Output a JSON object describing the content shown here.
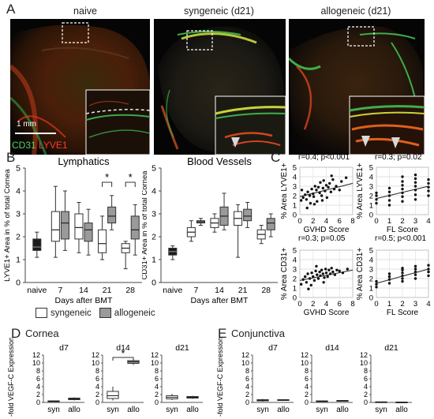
{
  "panel_a": {
    "letter": "A",
    "conditions": [
      "naive",
      "syngeneic (d21)",
      "allogeneic (d21)"
    ],
    "scale_bar": "1 mm",
    "stain_green": "CD31",
    "stain_red": "LYVE1",
    "colors": {
      "green": "#3fae49",
      "red": "#e2231a"
    }
  },
  "panel_b": {
    "letter": "B",
    "legend": {
      "syngeneic": "syngeneic",
      "allogeneic": "allogeneic"
    },
    "xlabel": "Days after BMT",
    "star": "*"
  },
  "panel_c": {
    "letter": "C"
  },
  "panel_d": {
    "letter": "D",
    "title": "Cornea"
  },
  "panel_e": {
    "letter": "E",
    "title": "Conjunctiva"
  },
  "chart_data": [
    {
      "type": "box",
      "title": "Lymphatics",
      "ylabel": "LYVE1+ Area in % of total Cornea",
      "xlabel": "Days after BMT",
      "categories": [
        "naive",
        "7",
        "14",
        "21",
        "28"
      ],
      "ylim": [
        0,
        5
      ],
      "yticks": [
        0,
        1,
        2,
        3,
        4,
        5
      ],
      "series": [
        {
          "name": "naive",
          "boxes": [
            {
              "cat": "naive",
              "min": 1.1,
              "q1": 1.4,
              "median": 1.55,
              "q3": 1.9,
              "max": 2.2
            }
          ]
        },
        {
          "name": "syngeneic",
          "boxes": [
            {
              "cat": "7",
              "min": 1.1,
              "q1": 1.8,
              "median": 2.3,
              "q3": 3.1,
              "max": 4.2
            },
            {
              "cat": "14",
              "min": 1.3,
              "q1": 1.9,
              "median": 2.4,
              "q3": 3.0,
              "max": 3.5
            },
            {
              "cat": "21",
              "min": 1.0,
              "q1": 1.3,
              "median": 1.7,
              "q3": 2.3,
              "max": 2.9
            },
            {
              "cat": "28",
              "min": 0.6,
              "q1": 1.3,
              "median": 1.5,
              "q3": 1.7,
              "max": 1.8
            }
          ]
        },
        {
          "name": "allogeneic",
          "boxes": [
            {
              "cat": "7",
              "min": 1.4,
              "q1": 1.9,
              "median": 2.6,
              "q3": 3.1,
              "max": 4.0
            },
            {
              "cat": "14",
              "min": 1.2,
              "q1": 1.8,
              "median": 2.3,
              "q3": 2.6,
              "max": 3.2
            },
            {
              "cat": "21",
              "min": 2.3,
              "q1": 2.6,
              "median": 2.9,
              "q3": 3.3,
              "max": 3.8
            },
            {
              "cat": "28",
              "min": 1.2,
              "q1": 1.9,
              "median": 2.3,
              "q3": 2.9,
              "max": 3.4
            }
          ]
        }
      ],
      "significance": [
        {
          "cat": "21",
          "label": "*"
        },
        {
          "cat": "28",
          "label": "*"
        }
      ]
    },
    {
      "type": "box",
      "title": "Blood Vessels",
      "ylabel": "CD31+ Area in % of total Cornea",
      "xlabel": "Days after BMT",
      "categories": [
        "naive",
        "7",
        "14",
        "21",
        "28"
      ],
      "ylim": [
        0,
        5
      ],
      "yticks": [
        0,
        1,
        2,
        3,
        4,
        5
      ],
      "series": [
        {
          "name": "naive",
          "boxes": [
            {
              "cat": "naive",
              "min": 1.0,
              "q1": 1.2,
              "median": 1.35,
              "q3": 1.5,
              "max": 1.6
            }
          ]
        },
        {
          "name": "syngeneic",
          "boxes": [
            {
              "cat": "7",
              "min": 1.8,
              "q1": 2.0,
              "median": 2.2,
              "q3": 2.4,
              "max": 2.7
            },
            {
              "cat": "14",
              "min": 2.2,
              "q1": 2.4,
              "median": 2.6,
              "q3": 2.8,
              "max": 3.0
            },
            {
              "cat": "21",
              "min": 1.1,
              "q1": 2.5,
              "median": 2.8,
              "q3": 3.1,
              "max": 3.4
            },
            {
              "cat": "28",
              "min": 1.7,
              "q1": 1.9,
              "median": 2.1,
              "q3": 2.3,
              "max": 2.5
            }
          ]
        },
        {
          "name": "allogeneic",
          "boxes": [
            {
              "cat": "7",
              "min": 2.5,
              "q1": 2.6,
              "median": 2.65,
              "q3": 2.7,
              "max": 2.8
            },
            {
              "cat": "14",
              "min": 2.3,
              "q1": 2.5,
              "median": 2.9,
              "q3": 3.3,
              "max": 3.9
            },
            {
              "cat": "21",
              "min": 2.4,
              "q1": 2.7,
              "median": 2.9,
              "q3": 3.2,
              "max": 3.5
            },
            {
              "cat": "28",
              "min": 2.0,
              "q1": 2.3,
              "median": 2.6,
              "q3": 2.8,
              "max": 3.0
            }
          ]
        }
      ]
    },
    {
      "type": "scatter",
      "annotation": "r=0.4; p<0.001",
      "xlabel": "GVHD Score",
      "ylabel": "% Area LYVE1+",
      "xlim": [
        0,
        8
      ],
      "ylim": [
        0,
        5
      ],
      "xticks": [
        0,
        2,
        4,
        6,
        8
      ],
      "yticks": [
        0,
        1,
        2,
        3,
        4,
        5
      ],
      "trend": [
        [
          0,
          1.9
        ],
        [
          8,
          3.3
        ]
      ],
      "points": [
        [
          0.2,
          1.5
        ],
        [
          0.5,
          1.8
        ],
        [
          0.8,
          2.1
        ],
        [
          1.0,
          1.6
        ],
        [
          1.2,
          2.4
        ],
        [
          1.5,
          2.0
        ],
        [
          1.6,
          1.2
        ],
        [
          1.8,
          2.7
        ],
        [
          2.0,
          2.2
        ],
        [
          2.1,
          1.9
        ],
        [
          2.3,
          3.0
        ],
        [
          2.5,
          2.6
        ],
        [
          2.6,
          1.4
        ],
        [
          2.8,
          2.9
        ],
        [
          3.0,
          2.3
        ],
        [
          3.1,
          3.4
        ],
        [
          3.3,
          2.0
        ],
        [
          3.5,
          2.8
        ],
        [
          3.6,
          3.6
        ],
        [
          3.8,
          2.5
        ],
        [
          4.0,
          3.1
        ],
        [
          4.1,
          1.8
        ],
        [
          4.3,
          2.9
        ],
        [
          4.5,
          3.3
        ],
        [
          4.7,
          2.4
        ],
        [
          5.0,
          3.7
        ],
        [
          5.2,
          2.7
        ],
        [
          5.5,
          3.0
        ],
        [
          6.0,
          2.6
        ],
        [
          6.3,
          3.5
        ],
        [
          7.0,
          3.9
        ],
        [
          1.1,
          0.7
        ],
        [
          2.2,
          1.1
        ],
        [
          0.3,
          2.6
        ],
        [
          3.4,
          1.5
        ],
        [
          4.8,
          4.1
        ]
      ]
    },
    {
      "type": "scatter",
      "annotation": "r=0.3; p=0.02",
      "xlabel": "FL Score",
      "ylabel": "% Area LYVE1+",
      "xlim": [
        0,
        4
      ],
      "ylim": [
        0,
        5
      ],
      "xticks": [
        0,
        1,
        2,
        3,
        4
      ],
      "yticks": [
        0,
        1,
        2,
        3,
        4,
        5
      ],
      "trend": [
        [
          0,
          1.7
        ],
        [
          4,
          3.0
        ]
      ],
      "points": [
        [
          0,
          1.2
        ],
        [
          0,
          1.6
        ],
        [
          0,
          2.0
        ],
        [
          0,
          2.3
        ],
        [
          1,
          1.0
        ],
        [
          1,
          1.5
        ],
        [
          1,
          2.0
        ],
        [
          1,
          2.4
        ],
        [
          1,
          2.8
        ],
        [
          2,
          1.4
        ],
        [
          2,
          1.9
        ],
        [
          2,
          2.3
        ],
        [
          2,
          2.7
        ],
        [
          2,
          3.1
        ],
        [
          2,
          3.5
        ],
        [
          2,
          4.0
        ],
        [
          3,
          1.6
        ],
        [
          3,
          2.1
        ],
        [
          3,
          2.6
        ],
        [
          3,
          3.0
        ],
        [
          3,
          3.4
        ],
        [
          3,
          3.8
        ],
        [
          3,
          4.2
        ],
        [
          4,
          2.0
        ],
        [
          4,
          2.5
        ],
        [
          4,
          2.9
        ],
        [
          4,
          3.3
        ],
        [
          4,
          3.7
        ]
      ]
    },
    {
      "type": "scatter",
      "annotation": "r=0.3; p=0.05",
      "xlabel": "GVHD Score",
      "ylabel": "% Area CD31+",
      "xlim": [
        0,
        8
      ],
      "ylim": [
        0,
        5
      ],
      "xticks": [
        0,
        2,
        4,
        6,
        8
      ],
      "yticks": [
        0,
        1,
        2,
        3,
        4,
        5
      ],
      "trend": [
        [
          0,
          1.8
        ],
        [
          8,
          2.9
        ]
      ],
      "points": [
        [
          0.2,
          1.4
        ],
        [
          0.5,
          1.9
        ],
        [
          0.8,
          2.2
        ],
        [
          1.0,
          1.6
        ],
        [
          1.2,
          2.5
        ],
        [
          1.5,
          2.0
        ],
        [
          1.7,
          1.3
        ],
        [
          1.8,
          2.6
        ],
        [
          2.0,
          2.2
        ],
        [
          2.2,
          1.8
        ],
        [
          2.4,
          2.8
        ],
        [
          2.6,
          2.4
        ],
        [
          2.8,
          2.0
        ],
        [
          3.0,
          2.7
        ],
        [
          3.1,
          2.3
        ],
        [
          3.3,
          2.9
        ],
        [
          3.5,
          2.5
        ],
        [
          3.7,
          2.1
        ],
        [
          3.9,
          3.0
        ],
        [
          4.0,
          2.6
        ],
        [
          4.2,
          2.2
        ],
        [
          4.4,
          2.9
        ],
        [
          4.6,
          2.5
        ],
        [
          4.8,
          3.1
        ],
        [
          5.0,
          2.7
        ],
        [
          5.3,
          2.4
        ],
        [
          5.6,
          2.9
        ],
        [
          6.0,
          2.8
        ],
        [
          6.5,
          2.6
        ],
        [
          7.2,
          3.0
        ],
        [
          1.3,
          0.9
        ],
        [
          2.5,
          3.3
        ],
        [
          3.6,
          1.6
        ]
      ]
    },
    {
      "type": "scatter",
      "annotation": "r=0.5; p<0.001",
      "xlabel": "FL Score",
      "ylabel": "% Area CD31+",
      "xlim": [
        0,
        4
      ],
      "ylim": [
        0,
        5
      ],
      "xticks": [
        0,
        1,
        2,
        3,
        4
      ],
      "yticks": [
        0,
        1,
        2,
        3,
        4,
        5
      ],
      "trend": [
        [
          0,
          1.5
        ],
        [
          4,
          3.0
        ]
      ],
      "points": [
        [
          0,
          1.1
        ],
        [
          0,
          1.4
        ],
        [
          0,
          1.7
        ],
        [
          1,
          1.5
        ],
        [
          1,
          1.9
        ],
        [
          1,
          2.2
        ],
        [
          1,
          2.5
        ],
        [
          2,
          1.7
        ],
        [
          2,
          2.0
        ],
        [
          2,
          2.3
        ],
        [
          2,
          2.6
        ],
        [
          2,
          2.9
        ],
        [
          2,
          3.1
        ],
        [
          3,
          2.0
        ],
        [
          3,
          2.4
        ],
        [
          3,
          2.7
        ],
        [
          3,
          3.0
        ],
        [
          3,
          3.3
        ],
        [
          4,
          2.3
        ],
        [
          4,
          2.7
        ],
        [
          4,
          3.0
        ],
        [
          4,
          3.4
        ]
      ]
    },
    {
      "type": "box",
      "group": "Cornea",
      "title": "d7",
      "ylabel": "n-fold VEGF-C Expression",
      "categories": [
        "syn",
        "allo"
      ],
      "ylim": [
        0,
        12
      ],
      "yticks": [
        0,
        2,
        4,
        6,
        8,
        10,
        12
      ],
      "boxes": [
        {
          "cat": "syn",
          "min": 0.1,
          "q1": 0.2,
          "median": 0.3,
          "q3": 0.4,
          "max": 0.5
        },
        {
          "cat": "allo",
          "min": 0.5,
          "q1": 0.7,
          "median": 0.9,
          "q3": 1.1,
          "max": 1.3
        }
      ]
    },
    {
      "type": "box",
      "group": "Cornea",
      "title": "d14",
      "ylabel": "n-fold VEGF-C Expression",
      "categories": [
        "syn",
        "allo"
      ],
      "ylim": [
        0,
        12
      ],
      "yticks": [
        0,
        2,
        4,
        6,
        8,
        10,
        12
      ],
      "boxes": [
        {
          "cat": "syn",
          "min": 0.5,
          "q1": 1.0,
          "median": 1.7,
          "q3": 2.8,
          "max": 4.0
        },
        {
          "cat": "allo",
          "min": 9.5,
          "q1": 9.9,
          "median": 10.3,
          "q3": 10.6,
          "max": 11.0
        }
      ],
      "significance": [
        {
          "from": "syn",
          "to": "allo",
          "label": "*"
        }
      ]
    },
    {
      "type": "box",
      "group": "Cornea",
      "title": "d21",
      "ylabel": "n-fold VEGF-C Expression",
      "categories": [
        "syn",
        "allo"
      ],
      "ylim": [
        0,
        12
      ],
      "yticks": [
        0,
        2,
        4,
        6,
        8,
        10,
        12
      ],
      "boxes": [
        {
          "cat": "syn",
          "min": 0.6,
          "q1": 0.9,
          "median": 1.3,
          "q3": 1.7,
          "max": 2.2
        },
        {
          "cat": "allo",
          "min": 0.9,
          "q1": 1.1,
          "median": 1.3,
          "q3": 1.5,
          "max": 1.7
        }
      ]
    },
    {
      "type": "box",
      "group": "Conjunctiva",
      "title": "d7",
      "ylabel": "n-fold VEGF-C Expression",
      "categories": [
        "syn",
        "allo"
      ],
      "ylim": [
        0,
        12
      ],
      "yticks": [
        0,
        2,
        4,
        6,
        8,
        10,
        12
      ],
      "boxes": [
        {
          "cat": "syn",
          "min": 0.2,
          "q1": 0.4,
          "median": 0.5,
          "q3": 0.7,
          "max": 0.9
        },
        {
          "cat": "allo",
          "min": 0.4,
          "q1": 0.5,
          "median": 0.6,
          "q3": 0.7,
          "max": 0.8
        }
      ]
    },
    {
      "type": "box",
      "group": "Conjunctiva",
      "title": "d14",
      "ylabel": "n-fold VEGF-C Expression",
      "categories": [
        "syn",
        "allo"
      ],
      "ylim": [
        0,
        12
      ],
      "yticks": [
        0,
        2,
        4,
        6,
        8,
        10,
        12
      ],
      "boxes": [
        {
          "cat": "syn",
          "min": 0.1,
          "q1": 0.2,
          "median": 0.3,
          "q3": 0.4,
          "max": 0.5
        },
        {
          "cat": "allo",
          "min": 0.2,
          "q1": 0.3,
          "median": 0.4,
          "q3": 0.5,
          "max": 0.6
        }
      ]
    },
    {
      "type": "box",
      "group": "Conjunctiva",
      "title": "d21",
      "ylabel": "n-fold VEGF-C Expression",
      "categories": [
        "syn",
        "allo"
      ],
      "ylim": [
        0,
        12
      ],
      "yticks": [
        0,
        2,
        4,
        6,
        8,
        10,
        12
      ],
      "boxes": [
        {
          "cat": "syn",
          "min": 0.0,
          "q1": 0.05,
          "median": 0.1,
          "q3": 0.15,
          "max": 0.2
        },
        {
          "cat": "allo",
          "min": 0.0,
          "q1": 0.03,
          "median": 0.06,
          "q3": 0.1,
          "max": 0.15
        }
      ]
    }
  ]
}
